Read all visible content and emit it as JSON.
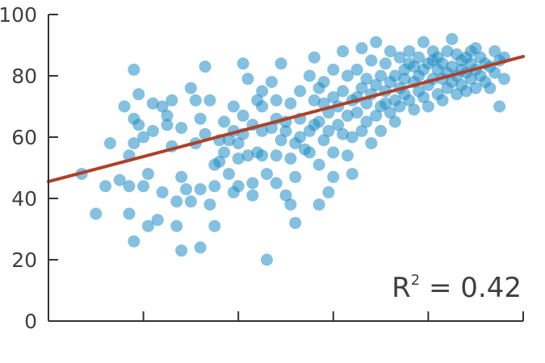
{
  "chart_data": {
    "type": "scatter",
    "title": "",
    "xlabel": "",
    "ylabel": "",
    "xlim": [
      0,
      100
    ],
    "ylim": [
      0,
      100
    ],
    "y_ticks": [
      0,
      20,
      40,
      60,
      80,
      100
    ],
    "y_tick_labels": [
      "0",
      "20",
      "40",
      "60",
      "80",
      "100"
    ],
    "x_ticks": [
      20,
      40,
      60,
      80
    ],
    "x_tick_labels_visible": false,
    "grid": false,
    "legend": "none",
    "colors": {
      "points": "#1f8cc4",
      "trend_line": "#ae4129",
      "axis": "#333333"
    },
    "trend_line": {
      "x": [
        0,
        100
      ],
      "y": [
        45.5,
        86.3
      ]
    },
    "annotation": {
      "base": "R",
      "superscript": "2",
      "suffix": " = 0.42"
    },
    "series": [
      {
        "points": [
          [
            7,
            48
          ],
          [
            10,
            35
          ],
          [
            12,
            44
          ],
          [
            13,
            58
          ],
          [
            15,
            46
          ],
          [
            16,
            70
          ],
          [
            17,
            44
          ],
          [
            17,
            54
          ],
          [
            17,
            35
          ],
          [
            18,
            82
          ],
          [
            18,
            66
          ],
          [
            18,
            58
          ],
          [
            18,
            26
          ],
          [
            19,
            74
          ],
          [
            19,
            64
          ],
          [
            20,
            44
          ],
          [
            20,
            60
          ],
          [
            21,
            48
          ],
          [
            21,
            31
          ],
          [
            22,
            62
          ],
          [
            22,
            71
          ],
          [
            23,
            33
          ],
          [
            24,
            70
          ],
          [
            24,
            42
          ],
          [
            25,
            64
          ],
          [
            25,
            67
          ],
          [
            26,
            72
          ],
          [
            26,
            57
          ],
          [
            27,
            31
          ],
          [
            27,
            39
          ],
          [
            28,
            47
          ],
          [
            28,
            23
          ],
          [
            28,
            63
          ],
          [
            29,
            43
          ],
          [
            30,
            76
          ],
          [
            30,
            39
          ],
          [
            31,
            58
          ],
          [
            31,
            72
          ],
          [
            32,
            66
          ],
          [
            32,
            24
          ],
          [
            32,
            43
          ],
          [
            33,
            83
          ],
          [
            33,
            61
          ],
          [
            34,
            72
          ],
          [
            34,
            38
          ],
          [
            35,
            44
          ],
          [
            35,
            51
          ],
          [
            35,
            31
          ],
          [
            36,
            59
          ],
          [
            36,
            52
          ],
          [
            37,
            65
          ],
          [
            37,
            55
          ],
          [
            38,
            48
          ],
          [
            38,
            59
          ],
          [
            39,
            62
          ],
          [
            39,
            42
          ],
          [
            39,
            70
          ],
          [
            40,
            44
          ],
          [
            40,
            53
          ],
          [
            40,
            58
          ],
          [
            41,
            67
          ],
          [
            41,
            84
          ],
          [
            41,
            61
          ],
          [
            42,
            79
          ],
          [
            42,
            54
          ],
          [
            43,
            45
          ],
          [
            43,
            64
          ],
          [
            43,
            41
          ],
          [
            44,
            55
          ],
          [
            44,
            72
          ],
          [
            45,
            75
          ],
          [
            45,
            62
          ],
          [
            45,
            54
          ],
          [
            45,
            70
          ],
          [
            46,
            20
          ],
          [
            46,
            48
          ],
          [
            47,
            63
          ],
          [
            47,
            78
          ],
          [
            48,
            45
          ],
          [
            48,
            66
          ],
          [
            48,
            54
          ],
          [
            48,
            72
          ],
          [
            49,
            59
          ],
          [
            49,
            84
          ],
          [
            50,
            41
          ],
          [
            50,
            65
          ],
          [
            50,
            62
          ],
          [
            51,
            38
          ],
          [
            51,
            53
          ],
          [
            51,
            71
          ],
          [
            52,
            47
          ],
          [
            52,
            58
          ],
          [
            52,
            32
          ],
          [
            53,
            66
          ],
          [
            53,
            60
          ],
          [
            53,
            75
          ],
          [
            54,
            56
          ],
          [
            55,
            55
          ],
          [
            55,
            80
          ],
          [
            55,
            62
          ],
          [
            56,
            72
          ],
          [
            56,
            86
          ],
          [
            56,
            64
          ],
          [
            57,
            38
          ],
          [
            57,
            51
          ],
          [
            57,
            65
          ],
          [
            57,
            76
          ],
          [
            58,
            59
          ],
          [
            58,
            71
          ],
          [
            58,
            78
          ],
          [
            59,
            42
          ],
          [
            59,
            62
          ],
          [
            59,
            68
          ],
          [
            60,
            47
          ],
          [
            60,
            55
          ],
          [
            60,
            73
          ],
          [
            60,
            82
          ],
          [
            61,
            64
          ],
          [
            61,
            70
          ],
          [
            62,
            61
          ],
          [
            62,
            75
          ],
          [
            62,
            88
          ],
          [
            63,
            67
          ],
          [
            63,
            54
          ],
          [
            63,
            80
          ],
          [
            64,
            72
          ],
          [
            64,
            60
          ],
          [
            64,
            48
          ],
          [
            65,
            73
          ],
          [
            65,
            68
          ],
          [
            65,
            82
          ],
          [
            66,
            76
          ],
          [
            66,
            62
          ],
          [
            66,
            89
          ],
          [
            67,
            71
          ],
          [
            67,
            65
          ],
          [
            67,
            79
          ],
          [
            68,
            74
          ],
          [
            68,
            58
          ],
          [
            68,
            85
          ],
          [
            69,
            67
          ],
          [
            69,
            77
          ],
          [
            69,
            91
          ],
          [
            70,
            70
          ],
          [
            70,
            80
          ],
          [
            70,
            62
          ],
          [
            71,
            75
          ],
          [
            71,
            84
          ],
          [
            71,
            71
          ],
          [
            72,
            78
          ],
          [
            72,
            68
          ],
          [
            72,
            88
          ],
          [
            73,
            72
          ],
          [
            73,
            80
          ],
          [
            73,
            65
          ],
          [
            74,
            76
          ],
          [
            74,
            86
          ],
          [
            74,
            70
          ],
          [
            75,
            82
          ],
          [
            75,
            74
          ],
          [
            75,
            79
          ],
          [
            76,
            84
          ],
          [
            76,
            72
          ],
          [
            76,
            88
          ],
          [
            77,
            78
          ],
          [
            77,
            69
          ],
          [
            77,
            83
          ],
          [
            78,
            80
          ],
          [
            78,
            75
          ],
          [
            78,
            86
          ],
          [
            79,
            73
          ],
          [
            79,
            82
          ],
          [
            79,
            91
          ],
          [
            80,
            77
          ],
          [
            80,
            84
          ],
          [
            80,
            70
          ],
          [
            81,
            85
          ],
          [
            81,
            79
          ],
          [
            81,
            88
          ],
          [
            82,
            74
          ],
          [
            82,
            82
          ],
          [
            82,
            86
          ],
          [
            83,
            79
          ],
          [
            83,
            72
          ],
          [
            83,
            84
          ],
          [
            84,
            81
          ],
          [
            84,
            76
          ],
          [
            84,
            88
          ],
          [
            85,
            78
          ],
          [
            85,
            83
          ],
          [
            85,
            92
          ],
          [
            86,
            80
          ],
          [
            86,
            74
          ],
          [
            86,
            87
          ],
          [
            87,
            77
          ],
          [
            87,
            82
          ],
          [
            87,
            85
          ],
          [
            88,
            81
          ],
          [
            88,
            75
          ],
          [
            88,
            86
          ],
          [
            89,
            79
          ],
          [
            89,
            84
          ],
          [
            89,
            88
          ],
          [
            90,
            82
          ],
          [
            90,
            76
          ],
          [
            90,
            89
          ],
          [
            91,
            80
          ],
          [
            91,
            86
          ],
          [
            92,
            78
          ],
          [
            92,
            84
          ],
          [
            93,
            83
          ],
          [
            93,
            76
          ],
          [
            94,
            88
          ],
          [
            94,
            81
          ],
          [
            95,
            85
          ],
          [
            95,
            70
          ],
          [
            96,
            79
          ],
          [
            96,
            86
          ]
        ]
      }
    ]
  }
}
